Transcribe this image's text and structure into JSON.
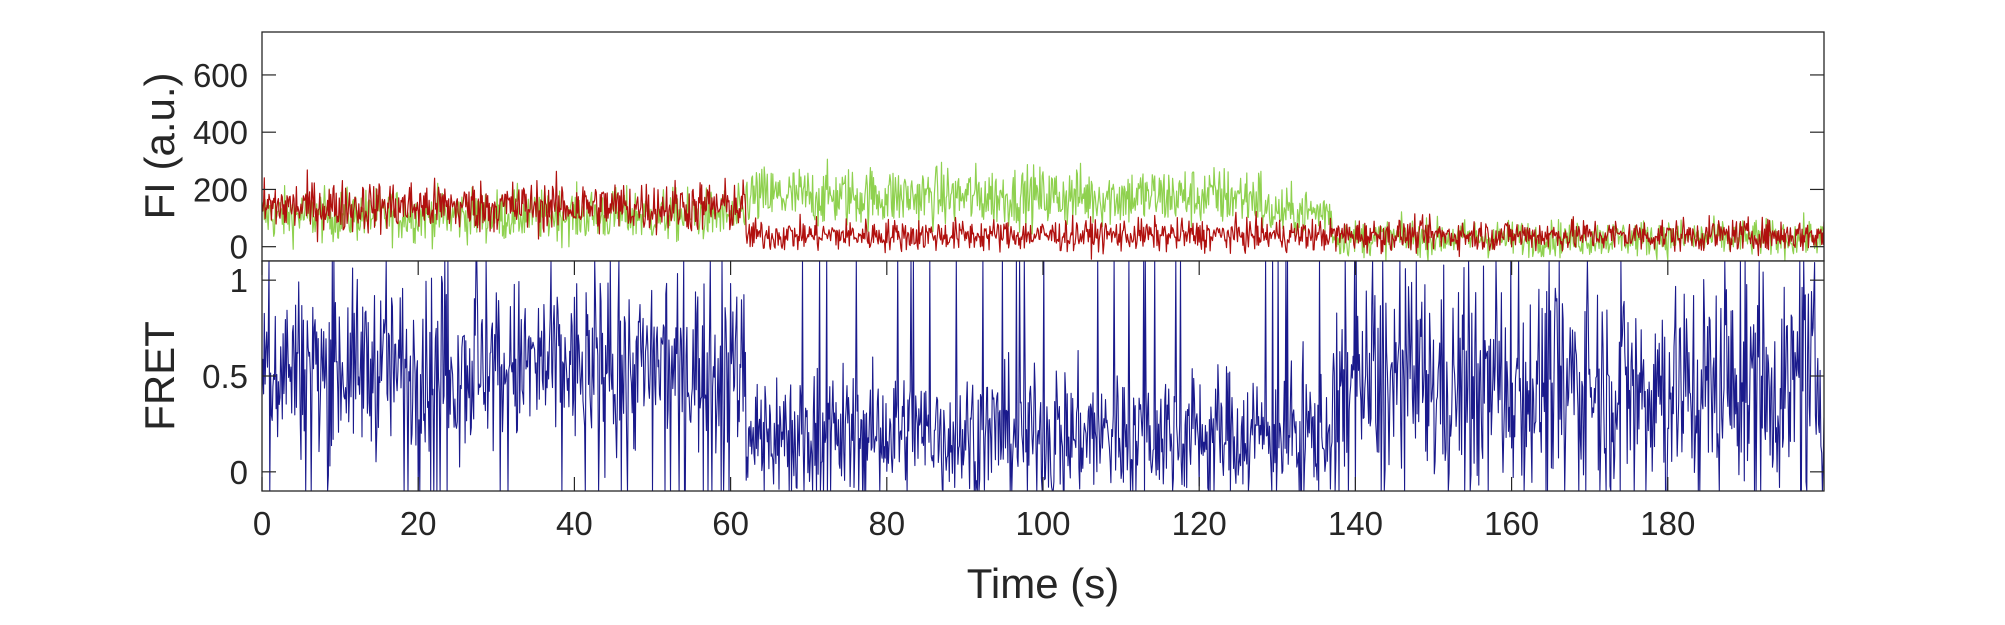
{
  "chart_data": [
    {
      "type": "line",
      "panel": "fluorescence",
      "ylabel": "FI (a.u.)",
      "xlabel": "",
      "xlim": [
        0,
        200
      ],
      "ylim": [
        -50,
        750
      ],
      "yticks": [
        0,
        200,
        400,
        600
      ],
      "ytick_labels": [
        "0",
        "200",
        "400",
        "600"
      ],
      "grid": false,
      "series": [
        {
          "color": "#8fd14f",
          "segments": [
            {
              "t": [
                0,
                62
              ],
              "mean": 110,
              "noise": 65
            },
            {
              "t": [
                62,
                128
              ],
              "mean": 175,
              "noise": 75
            },
            {
              "t": [
                128,
                137
              ],
              "mean": 120,
              "noise": 60
            },
            {
              "t": [
                137,
                200
              ],
              "mean": 30,
              "noise": 45
            }
          ]
        },
        {
          "color": "#b0100e",
          "segments": [
            {
              "t": [
                0,
                62
              ],
              "mean": 140,
              "noise": 65
            },
            {
              "t": [
                62,
                137
              ],
              "mean": 40,
              "noise": 40
            },
            {
              "t": [
                137,
                200
              ],
              "mean": 40,
              "noise": 40
            }
          ]
        }
      ]
    },
    {
      "type": "line",
      "panel": "fret",
      "ylabel": "FRET",
      "xlabel": "Time (s)",
      "xlim": [
        0,
        200
      ],
      "ylim": [
        -0.1,
        1.1
      ],
      "xticks": [
        0,
        20,
        40,
        60,
        80,
        100,
        120,
        140,
        160,
        180
      ],
      "xtick_labels": [
        "0",
        "20",
        "40",
        "60",
        "80",
        "100",
        "120",
        "140",
        "160",
        "180"
      ],
      "yticks": [
        0,
        0.5,
        1
      ],
      "ytick_labels": [
        "0",
        "0.5",
        "1"
      ],
      "grid": false,
      "series": [
        {
          "color": "#1a1a8c",
          "segments": [
            {
              "t": [
                0,
                62
              ],
              "mean": 0.55,
              "noise": 0.32
            },
            {
              "t": [
                62,
                137
              ],
              "mean": 0.2,
              "noise": 0.25
            },
            {
              "t": [
                137,
                200
              ],
              "mean": 0.45,
              "noise": 0.4
            }
          ]
        }
      ]
    }
  ]
}
